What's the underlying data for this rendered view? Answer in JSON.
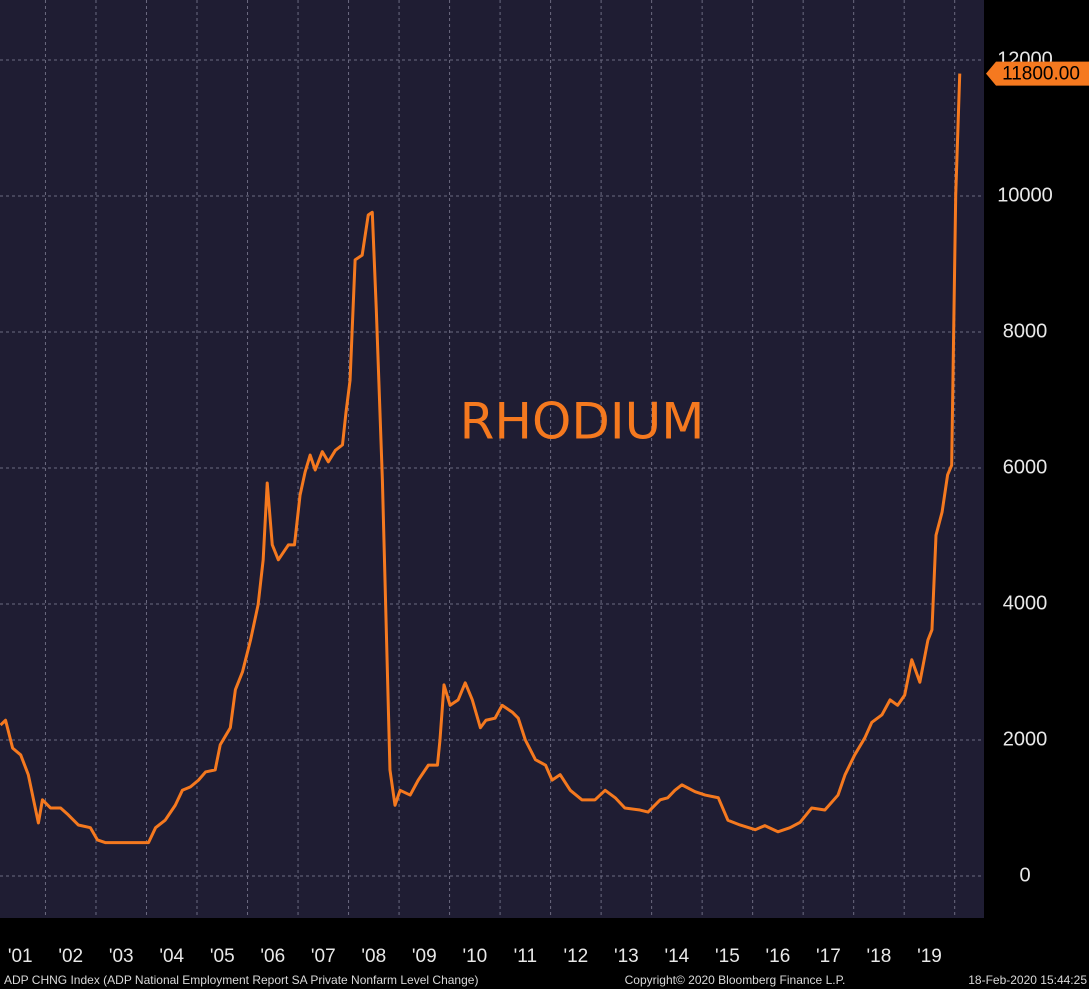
{
  "chart_data": {
    "type": "line",
    "annotation": "RHODIUM",
    "footer_left": "ADP CHNG Index (ADP National Employment Report SA Private Nonfarm Level Change)",
    "footer_center": "Copyright© 2020 Bloomberg Finance L.P.",
    "footer_right": "18-Feb-2020 15:44:25",
    "color": "#f5791f",
    "background": "#1f1d33",
    "grid": true,
    "last_label": {
      "value": 11800,
      "label": "11800.00"
    },
    "xlim": [
      2001.1,
      2020.58
    ],
    "ylim": [
      -618,
      12882
    ],
    "yticks": [
      0,
      2000,
      4000,
      6000,
      8000,
      10000,
      12000
    ],
    "xgrid": [
      2002,
      2003,
      2004,
      2005,
      2006,
      2007,
      2008,
      2009,
      2010,
      2011,
      2012,
      2013,
      2014,
      2015,
      2016,
      2017,
      2018,
      2019,
      2020
    ],
    "xticks": [
      {
        "value": 2001.5,
        "label": "'01"
      },
      {
        "value": 2002.5,
        "label": "'02"
      },
      {
        "value": 2003.5,
        "label": "'03"
      },
      {
        "value": 2004.5,
        "label": "'04"
      },
      {
        "value": 2005.5,
        "label": "'05"
      },
      {
        "value": 2006.5,
        "label": "'06"
      },
      {
        "value": 2007.5,
        "label": "'07"
      },
      {
        "value": 2008.5,
        "label": "'08"
      },
      {
        "value": 2009.5,
        "label": "'09"
      },
      {
        "value": 2010.5,
        "label": "'10"
      },
      {
        "value": 2011.5,
        "label": "'11"
      },
      {
        "value": 2012.5,
        "label": "'12"
      },
      {
        "value": 2013.5,
        "label": "'13"
      },
      {
        "value": 2014.5,
        "label": "'14"
      },
      {
        "value": 2015.5,
        "label": "'15"
      },
      {
        "value": 2016.5,
        "label": "'16"
      },
      {
        "value": 2017.5,
        "label": "'17"
      },
      {
        "value": 2018.5,
        "label": "'18"
      },
      {
        "value": 2019.5,
        "label": "'19"
      }
    ],
    "x": [
      2001.11,
      2001.21,
      2001.35,
      2001.51,
      2001.66,
      2001.86,
      2001.94,
      2002.1,
      2002.3,
      2002.45,
      2002.65,
      2002.89,
      2003.03,
      2003.19,
      2003.33,
      2003.48,
      2004.04,
      2004.18,
      2004.37,
      2004.57,
      2004.71,
      2004.87,
      2005.03,
      2005.17,
      2005.36,
      2005.46,
      2005.66,
      2005.76,
      2005.9,
      2006.06,
      2006.21,
      2006.31,
      2006.39,
      2006.49,
      2006.61,
      2006.81,
      2006.93,
      2007.04,
      2007.14,
      2007.24,
      2007.34,
      2007.48,
      2007.6,
      2007.74,
      2007.88,
      2007.95,
      2008.03,
      2008.13,
      2008.27,
      2008.39,
      2008.47,
      2008.55,
      2008.67,
      2008.82,
      2008.92,
      2009.02,
      2009.22,
      2009.38,
      2009.58,
      2009.76,
      2009.81,
      2009.89,
      2010.01,
      2010.17,
      2010.31,
      2010.45,
      2010.61,
      2010.72,
      2010.9,
      2011.04,
      2011.24,
      2011.36,
      2011.5,
      2011.7,
      2011.9,
      2012.03,
      2012.19,
      2012.39,
      2012.62,
      2012.88,
      2013.08,
      2013.28,
      2013.47,
      2013.77,
      2013.93,
      2014.17,
      2014.32,
      2014.46,
      2014.6,
      2014.86,
      2015.06,
      2015.32,
      2015.51,
      2015.75,
      2016.05,
      2016.24,
      2016.5,
      2016.74,
      2016.94,
      2017.17,
      2017.43,
      2017.69,
      2017.83,
      2018.02,
      2018.22,
      2018.36,
      2018.56,
      2018.72,
      2018.87,
      2019.01,
      2019.15,
      2019.31,
      2019.47,
      2019.55,
      2019.63,
      2019.75,
      2019.86,
      2019.94,
      2020.02,
      2020.1
    ],
    "values": [
      2220,
      2290,
      1880,
      1780,
      1490,
      780,
      1120,
      1000,
      1000,
      900,
      750,
      710,
      530,
      490,
      490,
      490,
      490,
      710,
      820,
      1040,
      1260,
      1310,
      1410,
      1530,
      1560,
      1930,
      2180,
      2740,
      3000,
      3470,
      3990,
      4650,
      5780,
      4870,
      4650,
      4870,
      4870,
      5600,
      5940,
      6190,
      5970,
      6240,
      6090,
      6260,
      6340,
      6820,
      7290,
      9060,
      9130,
      9720,
      9760,
      8320,
      5820,
      1560,
      1040,
      1260,
      1190,
      1410,
      1630,
      1630,
      2000,
      2810,
      2510,
      2590,
      2840,
      2590,
      2180,
      2290,
      2320,
      2510,
      2410,
      2320,
      2000,
      1710,
      1630,
      1410,
      1490,
      1260,
      1120,
      1120,
      1260,
      1150,
      1000,
      970,
      940,
      1120,
      1150,
      1260,
      1340,
      1240,
      1190,
      1150,
      820,
      750,
      680,
      740,
      650,
      710,
      790,
      1000,
      970,
      1190,
      1490,
      1780,
      2030,
      2260,
      2370,
      2590,
      2510,
      2660,
      3180,
      2850,
      3470,
      3620,
      5010,
      5350,
      5900,
      6040,
      10010,
      11800
    ]
  }
}
